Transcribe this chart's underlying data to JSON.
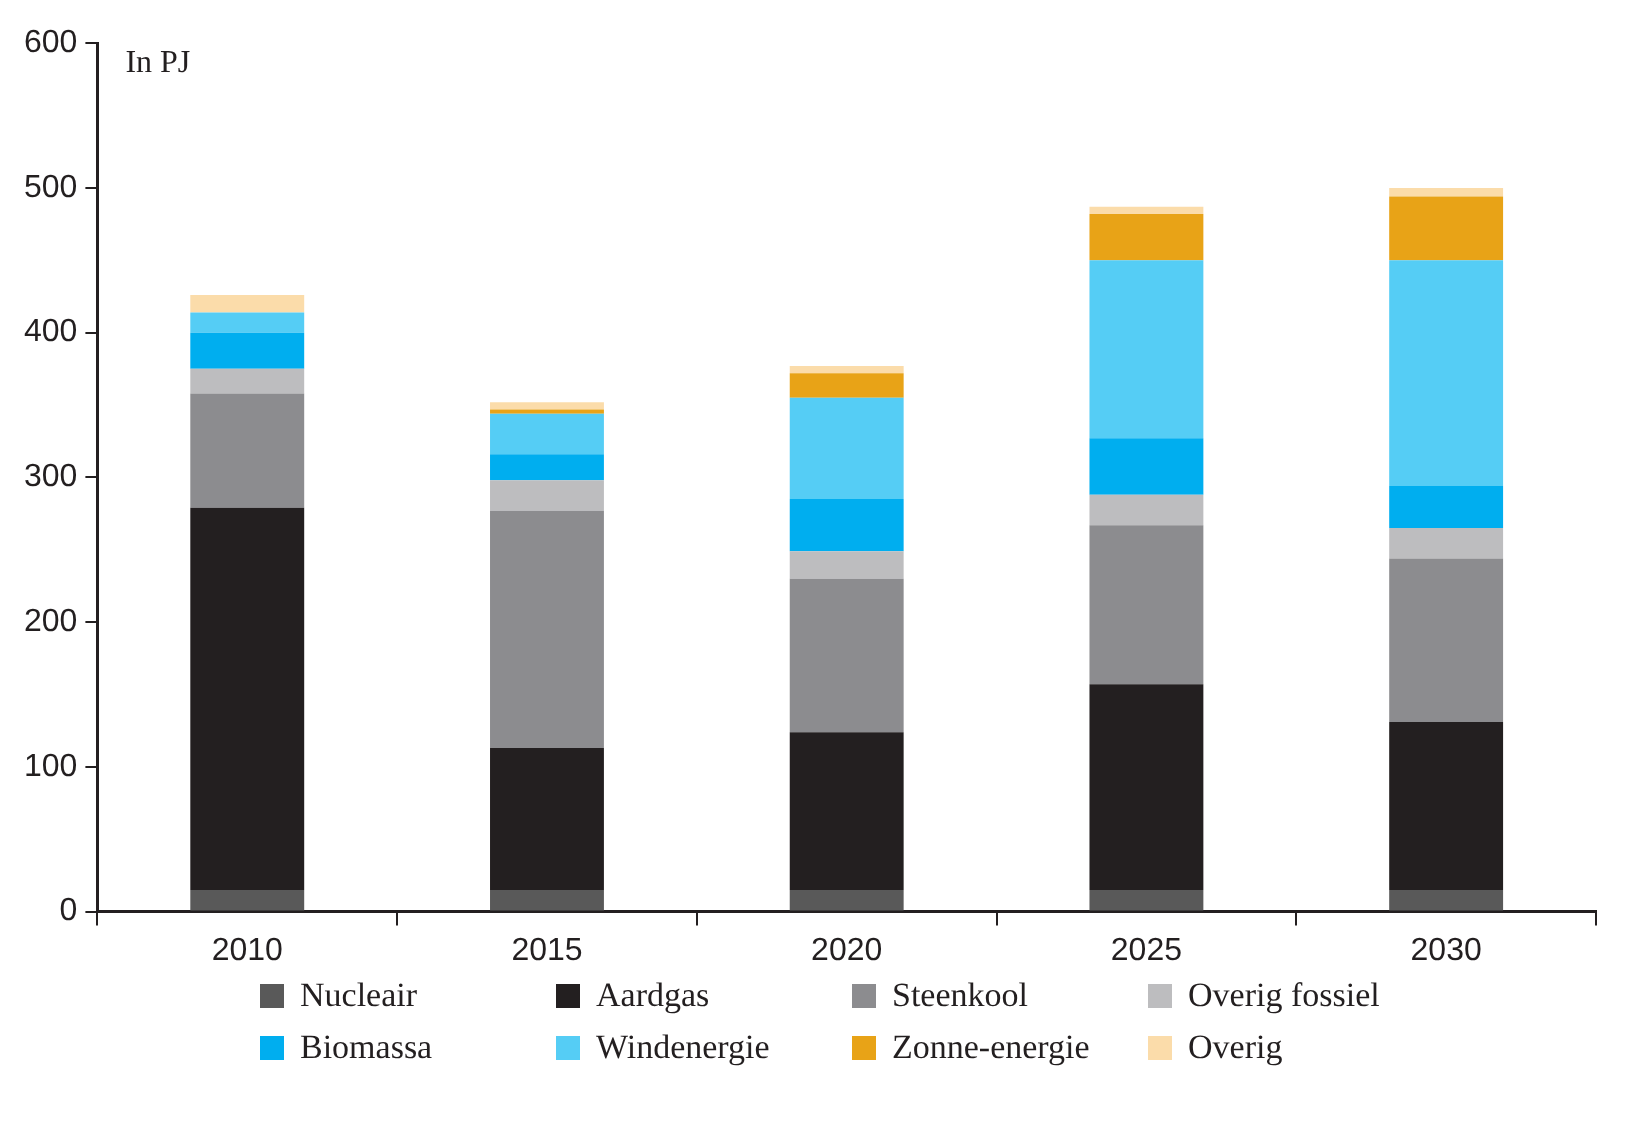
{
  "chart_data": {
    "type": "bar",
    "stacked": true,
    "categories": [
      "2010",
      "2015",
      "2020",
      "2025",
      "2030"
    ],
    "series": [
      {
        "name": "Nucleair",
        "color": "#595959",
        "values": [
          15,
          15,
          15,
          15,
          15
        ]
      },
      {
        "name": "Aardgas",
        "color": "#231f20",
        "values": [
          264,
          98,
          109,
          142,
          116
        ]
      },
      {
        "name": "Steenkool",
        "color": "#8c8c8f",
        "values": [
          79,
          164,
          106,
          110,
          113
        ]
      },
      {
        "name": "Overig fossiel",
        "color": "#bdbdbf",
        "values": [
          17,
          21,
          19,
          21,
          21
        ]
      },
      {
        "name": "Biomassa",
        "color": "#00aeef",
        "values": [
          25,
          18,
          36,
          39,
          29
        ]
      },
      {
        "name": "Windenergie",
        "color": "#55cdf5",
        "values": [
          14,
          28,
          70,
          123,
          156
        ]
      },
      {
        "name": "Zonne-energie",
        "color": "#e8a317",
        "values": [
          0,
          3,
          17,
          32,
          44
        ]
      },
      {
        "name": "Overig",
        "color": "#fbdcaa",
        "values": [
          12,
          5,
          5,
          5,
          6
        ]
      }
    ],
    "ylim": [
      0,
      600
    ],
    "yticks": [
      0,
      100,
      200,
      300,
      400,
      500,
      600
    ],
    "grid": false,
    "legend": "bottom",
    "annotations": [
      "In PJ"
    ]
  }
}
